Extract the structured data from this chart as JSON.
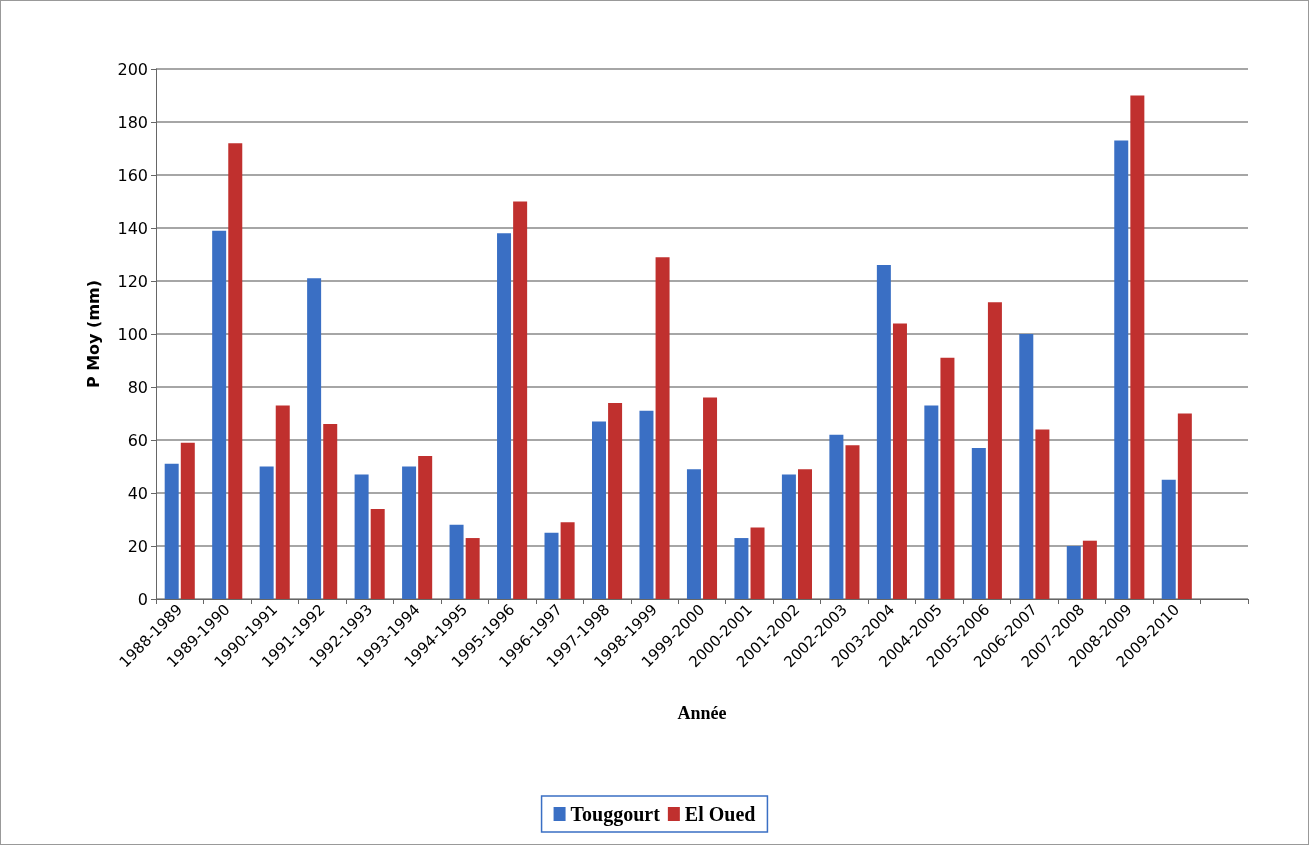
{
  "chart_data": {
    "type": "bar",
    "xlabel": "Année",
    "ylabel": "P Moy (mm)",
    "categories": [
      "1988-1989",
      "1989-1990",
      "1990-1991",
      "1991-1992",
      "1992-1993",
      "1993-1994",
      "1994-1995",
      "1995-1996",
      "1996-1997",
      "1997-1998",
      "1998-1999",
      "1999-2000",
      "2000-2001",
      "2001-2002",
      "2002-2003",
      "2003-2004",
      "2004-2005",
      "2005-2006",
      "2006-2007",
      "2007-2008",
      "2008-2009",
      "2009-2010",
      null
    ],
    "series": [
      {
        "name": "Touggourt",
        "color": "#3a6fc4",
        "values": [
          51,
          139,
          50,
          121,
          47,
          50,
          28,
          138,
          25,
          67,
          71,
          49,
          23,
          47,
          62,
          126,
          73,
          57,
          100,
          20,
          173,
          45,
          null
        ]
      },
      {
        "name": "El Oued",
        "color": "#c0302e",
        "values": [
          59,
          172,
          73,
          66,
          34,
          54,
          23,
          150,
          29,
          74,
          129,
          76,
          27,
          49,
          58,
          104,
          91,
          112,
          64,
          22,
          190,
          70,
          null
        ]
      }
    ],
    "ylim": [
      0,
      200
    ],
    "yticks": [
      0,
      20,
      40,
      60,
      80,
      100,
      120,
      140,
      160,
      180,
      200
    ],
    "grid": "y",
    "legend": "bottom"
  }
}
